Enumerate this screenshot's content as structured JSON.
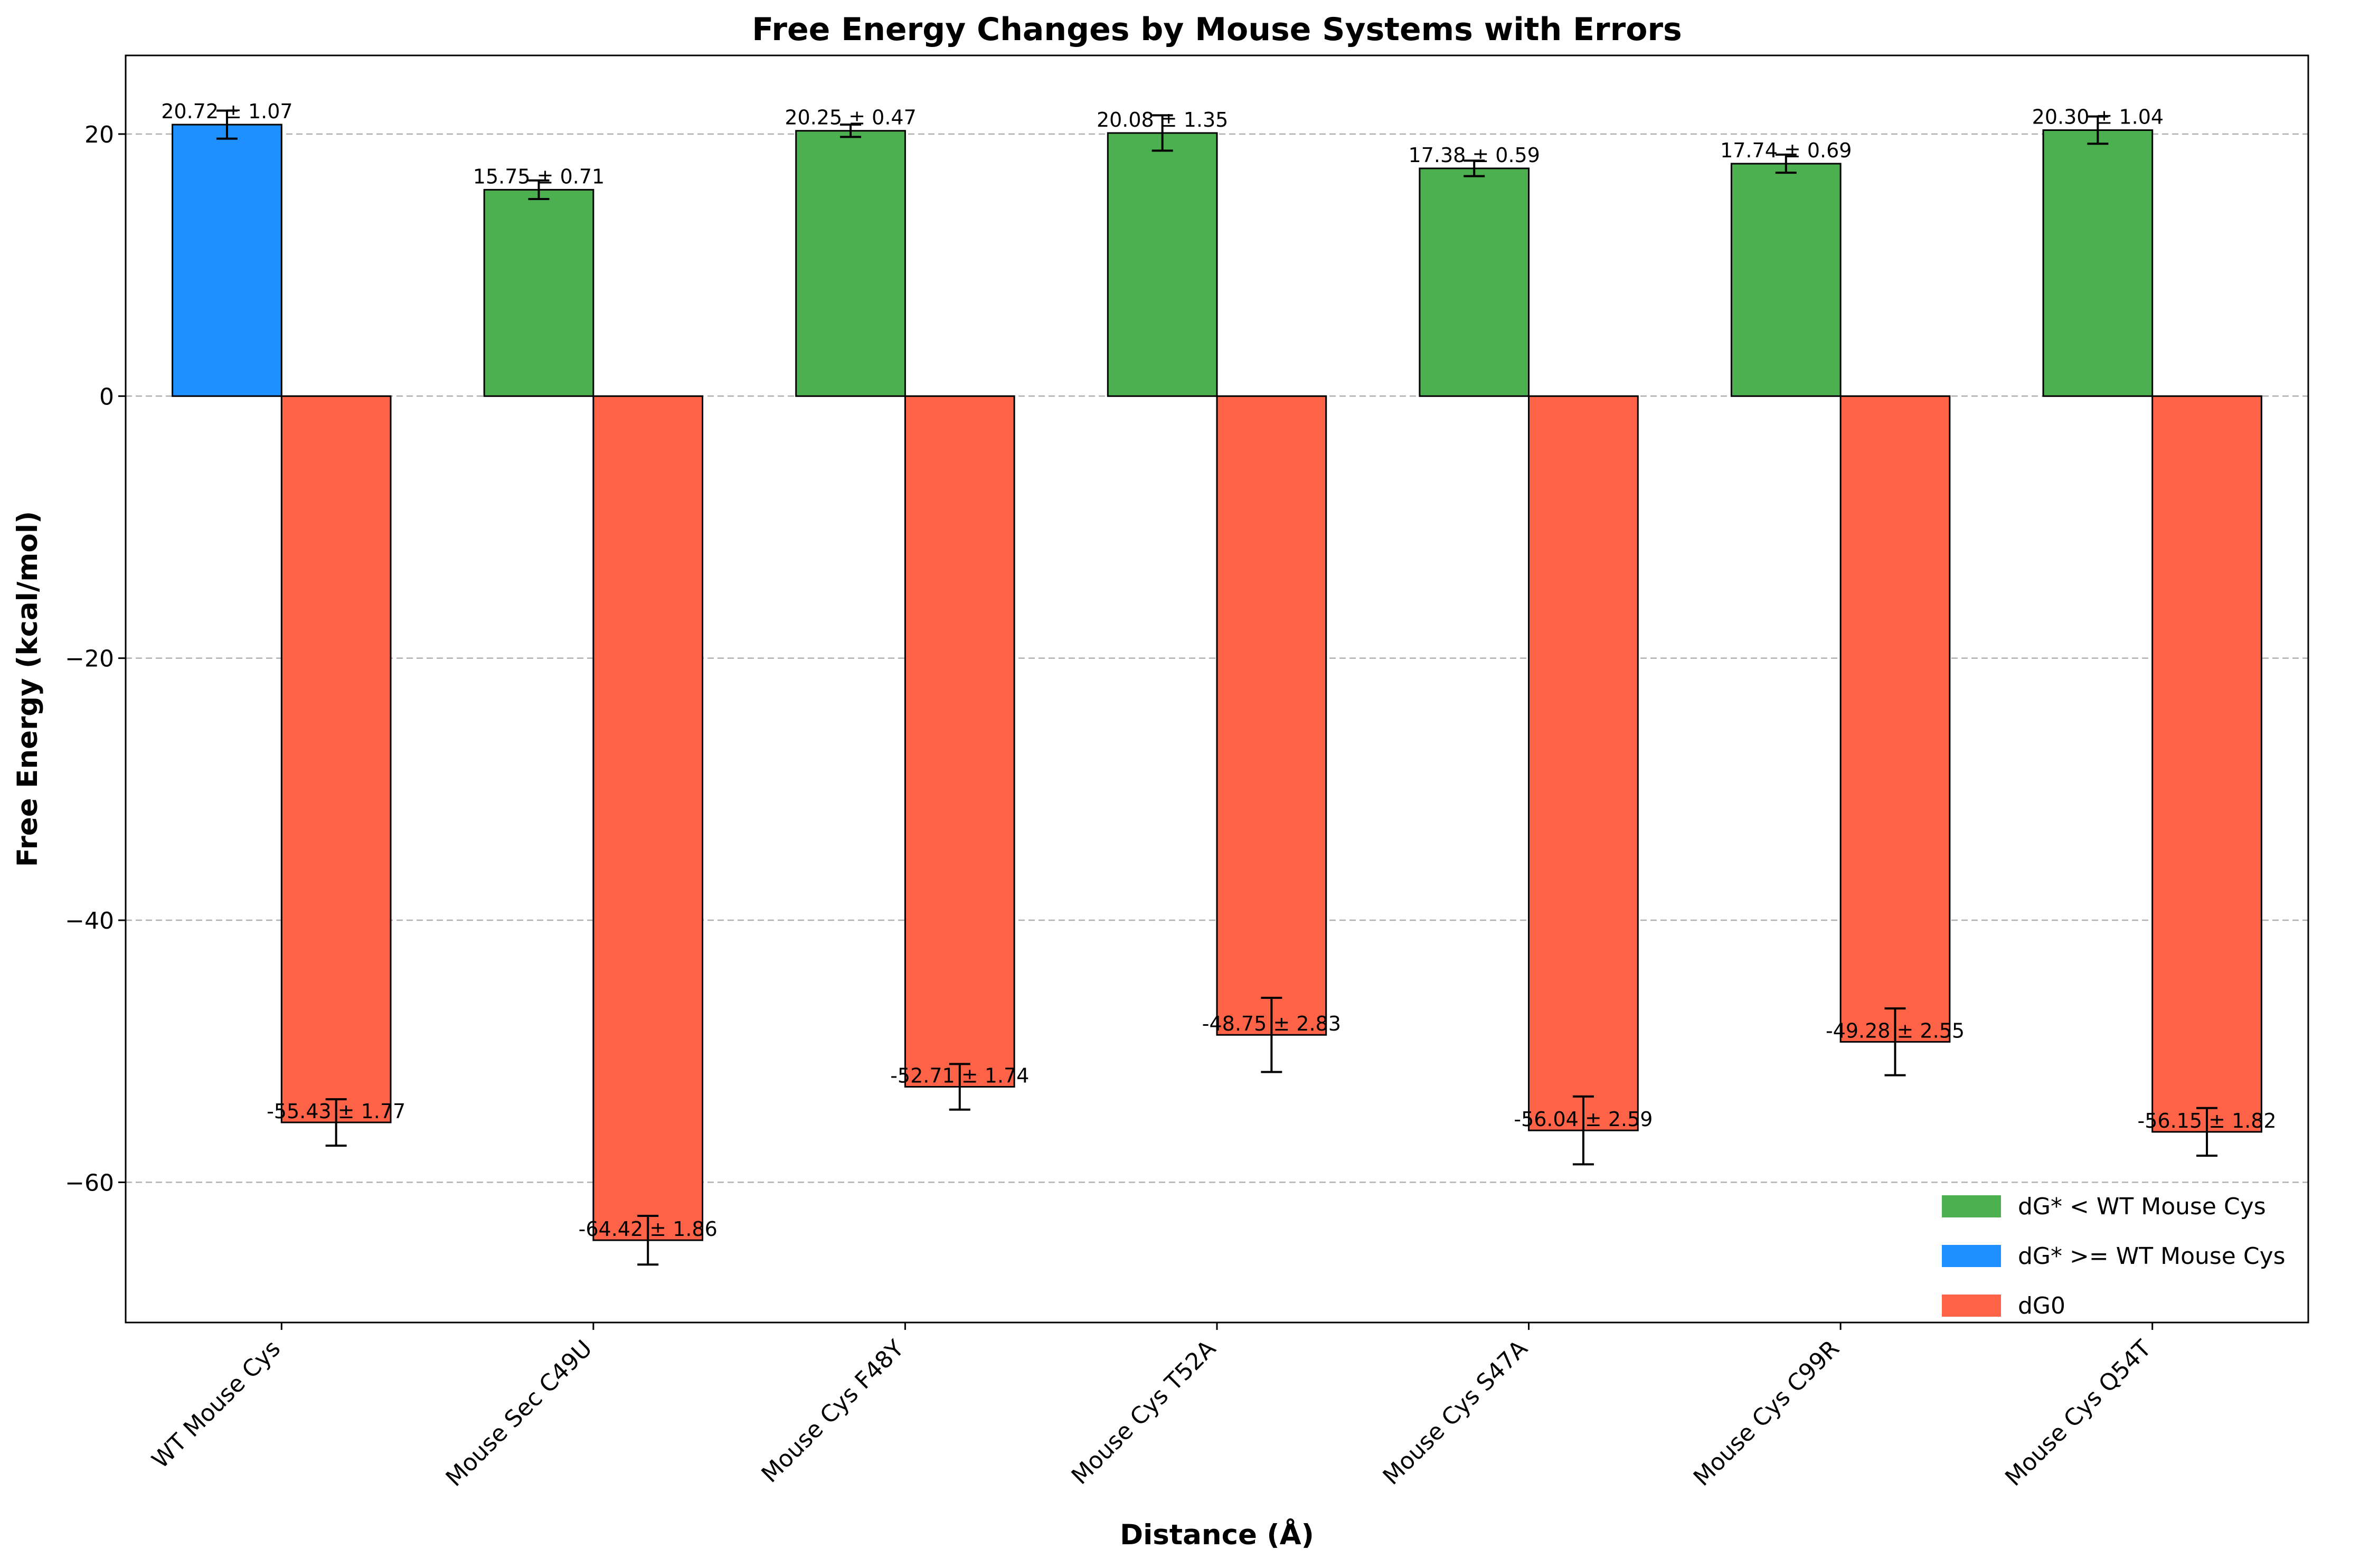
{
  "chart_data": {
    "type": "bar",
    "title": "Free Energy Changes by Mouse Systems with Errors",
    "xlabel": "Distance (Å)",
    "ylabel": "Free Energy (kcal/mol)",
    "ylim": [
      -70.7,
      26.0
    ],
    "yticks": [
      -60,
      -40,
      -20,
      0,
      20
    ],
    "grid": "y-dashed",
    "legend_position": "lower right",
    "categories": [
      "WT Mouse Cys",
      "Mouse Sec C49U",
      "Mouse Cys F48Y",
      "Mouse Cys T52A",
      "Mouse Cys S47A",
      "Mouse Cys C99R",
      "Mouse Cys Q54T"
    ],
    "series": [
      {
        "name": "dG*",
        "values": [
          20.72,
          15.75,
          20.25,
          20.08,
          17.38,
          17.74,
          20.3
        ],
        "errors": [
          1.07,
          0.71,
          0.47,
          1.35,
          0.59,
          0.69,
          1.04
        ],
        "labels": [
          "20.72 ± 1.07",
          "15.75 ± 0.71",
          "20.25 ± 0.47",
          "20.08 ± 1.35",
          "17.38 ± 0.59",
          "17.74 ± 0.69",
          "20.30 ± 1.04"
        ],
        "color_group": [
          "ge",
          "lt",
          "lt",
          "lt",
          "lt",
          "lt",
          "lt"
        ]
      },
      {
        "name": "dG0",
        "values": [
          -55.43,
          -64.42,
          -52.71,
          -48.75,
          -56.04,
          -49.28,
          -56.15
        ],
        "errors": [
          1.77,
          1.86,
          1.74,
          2.83,
          2.59,
          2.55,
          1.82
        ],
        "labels": [
          "-55.43 ± 1.77",
          "-64.42 ± 1.86",
          "-52.71 ± 1.74",
          "-48.75 ± 2.83",
          "-56.04 ± 2.59",
          "-49.28 ± 2.55",
          "-56.15 ± 1.82"
        ]
      }
    ],
    "legend": [
      {
        "label": "dG* < WT Mouse Cys",
        "color": "#4CAF50"
      },
      {
        "label": "dG* >= WT Mouse Cys",
        "color": "#1E90FF"
      },
      {
        "label": "dG0",
        "color": "#FF6347"
      }
    ],
    "colors": {
      "lt": "#4CAF50",
      "ge": "#1E90FF",
      "dg0": "#FF6347",
      "grid": "#b0b0b0",
      "edge": "#000000"
    }
  }
}
